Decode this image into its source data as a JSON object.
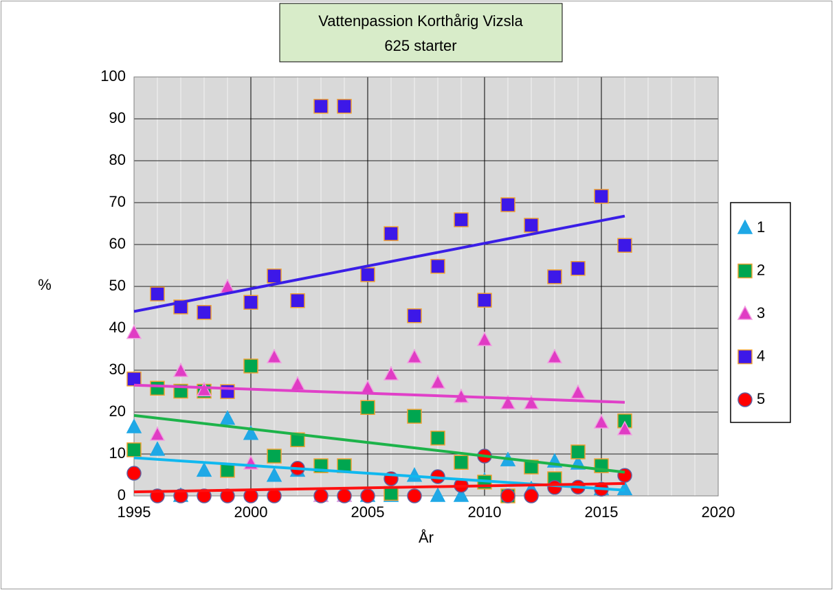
{
  "chart_data": {
    "type": "scatter",
    "title": [
      "Vattenpassion Korthårig Vizsla",
      "625  starter"
    ],
    "xlabel": "År",
    "ylabel": "%",
    "x": [
      1995,
      1996,
      1997,
      1998,
      1999,
      2000,
      2001,
      2002,
      2003,
      2004,
      2005,
      2006,
      2007,
      2008,
      2009,
      2010,
      2011,
      2012,
      2013,
      2014,
      2015,
      2016
    ],
    "series": [
      {
        "name": "1",
        "marker": "triangle",
        "color": "#1fa8e6",
        "edgecolor": "#1fa8e6",
        "trendcolor": "#10b8ef",
        "values": [
          16.4,
          11,
          0,
          6,
          18.4,
          14.8,
          4.8,
          6,
          0,
          0,
          0,
          0,
          4.8,
          0,
          0,
          3.6,
          8.5,
          1.6,
          8.2,
          7.7,
          1.6,
          1.6
        ]
      },
      {
        "name": "2",
        "marker": "square",
        "color": "#00a650",
        "edgecolor": "#f0a030",
        "trendcolor": "#1db34a",
        "values": [
          11,
          25.7,
          25,
          25,
          6.1,
          31,
          9.5,
          13.4,
          7.2,
          7.2,
          21.1,
          0.6,
          19,
          13.8,
          8,
          3.3,
          0,
          6.9,
          4.1,
          10.5,
          7.2,
          17.9
        ]
      },
      {
        "name": "3",
        "marker": "triangle",
        "color": "#e03cc4",
        "edgecolor": "#f0a0e0",
        "trendcolor": "#e040c8",
        "values": [
          38.9,
          14.6,
          29.8,
          25.2,
          49.8,
          7.7,
          33.1,
          26.6,
          0,
          0,
          25.7,
          29,
          33.1,
          27,
          23.6,
          37.2,
          22.1,
          22.1,
          33.1,
          24.6,
          17.5,
          15.9
        ]
      },
      {
        "name": "4",
        "marker": "square",
        "color": "#3d18e8",
        "edgecolor": "#f0a030",
        "trendcolor": "#3a1ee6",
        "values": [
          27.9,
          48.2,
          45.1,
          43.8,
          24.9,
          46.2,
          52.5,
          46.6,
          93,
          93,
          52.8,
          62.6,
          43,
          54.8,
          65.9,
          46.7,
          69.5,
          64.6,
          52.3,
          54.3,
          71.5,
          59.8
        ]
      },
      {
        "name": "5",
        "marker": "circle",
        "color": "#ff0000",
        "edgecolor": "#6060a0",
        "trendcolor": "#ff1010",
        "values": [
          5.4,
          0,
          0,
          0,
          0,
          0,
          0,
          6.6,
          0,
          0,
          0,
          4.1,
          0,
          4.6,
          2.5,
          9.5,
          0,
          0,
          2,
          2.1,
          1.6,
          4.9
        ]
      }
    ],
    "trendline": true,
    "xlim": [
      1995,
      2020
    ],
    "xticks": [
      1995,
      2000,
      2005,
      2010,
      2015,
      2020
    ],
    "xminor": 1,
    "ylim": [
      0,
      100
    ],
    "yticks": [
      0,
      10,
      20,
      30,
      40,
      50,
      60,
      70,
      80,
      90,
      100
    ],
    "grid": true,
    "plot_background": "#d9d9d9",
    "legend": "right"
  }
}
